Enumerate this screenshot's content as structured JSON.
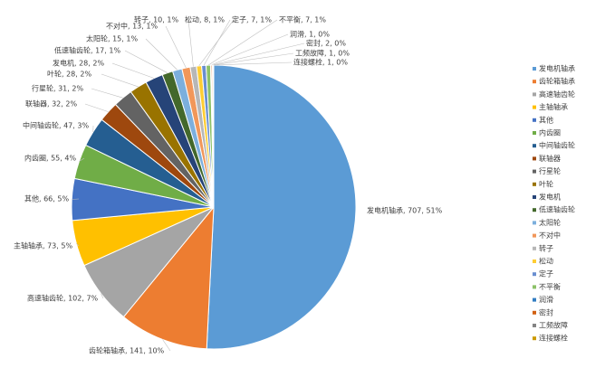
{
  "chart_data": {
    "type": "pie",
    "categories": [
      "发电机轴承",
      "齿轮箱轴承",
      "高速轴齿轮",
      "主轴轴承",
      "其他",
      "内齿圈",
      "中间轴齿轮",
      "联轴器",
      "行星轮",
      "叶轮",
      "发电机",
      "低速轴齿轮",
      "太阳轮",
      "不对中",
      "转子",
      "松动",
      "定子",
      "不平衡",
      "润滑",
      "密封",
      "工频故障",
      "连接螺栓"
    ],
    "values": [
      707,
      141,
      102,
      73,
      66,
      55,
      47,
      32,
      31,
      28,
      28,
      17,
      15,
      13,
      10,
      8,
      7,
      7,
      1,
      2,
      1,
      1
    ],
    "value_labels": [
      "发电机轴承, 707, 51%",
      "齿轮箱轴承, 141, 10%",
      "高速轴齿轮, 102, 7%",
      "主轴轴承, 73, 5%",
      "其他, 66, 5%",
      "内齿圈, 55, 4%",
      "中间轴齿轮, 47, 3%",
      "联轴器, 32, 2%",
      "行星轮, 31, 2%",
      "叶轮, 28, 2%",
      "发电机, 28, 2%",
      "低速轴齿轮, 17, 1%",
      "太阳轮, 15, 1%",
      "不对中, 13, 1%",
      "转子, 10, 1%",
      "松动, 8, 1%",
      "定子, 7, 1%",
      "不平衡, 7, 1%",
      "润滑, 1, 0%",
      "密封, 2, 0%",
      "工频故障, 1, 0%",
      "连接螺栓, 1, 0%"
    ],
    "colors": [
      "#5b9bd5",
      "#ed7d31",
      "#a5a5a5",
      "#ffc000",
      "#4472c4",
      "#70ad47",
      "#255e91",
      "#9e480e",
      "#636363",
      "#997300",
      "#264478",
      "#43682b",
      "#7cafdd",
      "#f1975a",
      "#b7b7b7",
      "#ffcd33",
      "#698ed0",
      "#8cc168",
      "#327dc2",
      "#d26012",
      "#848484",
      "#cc9a00"
    ],
    "legend": "right"
  }
}
